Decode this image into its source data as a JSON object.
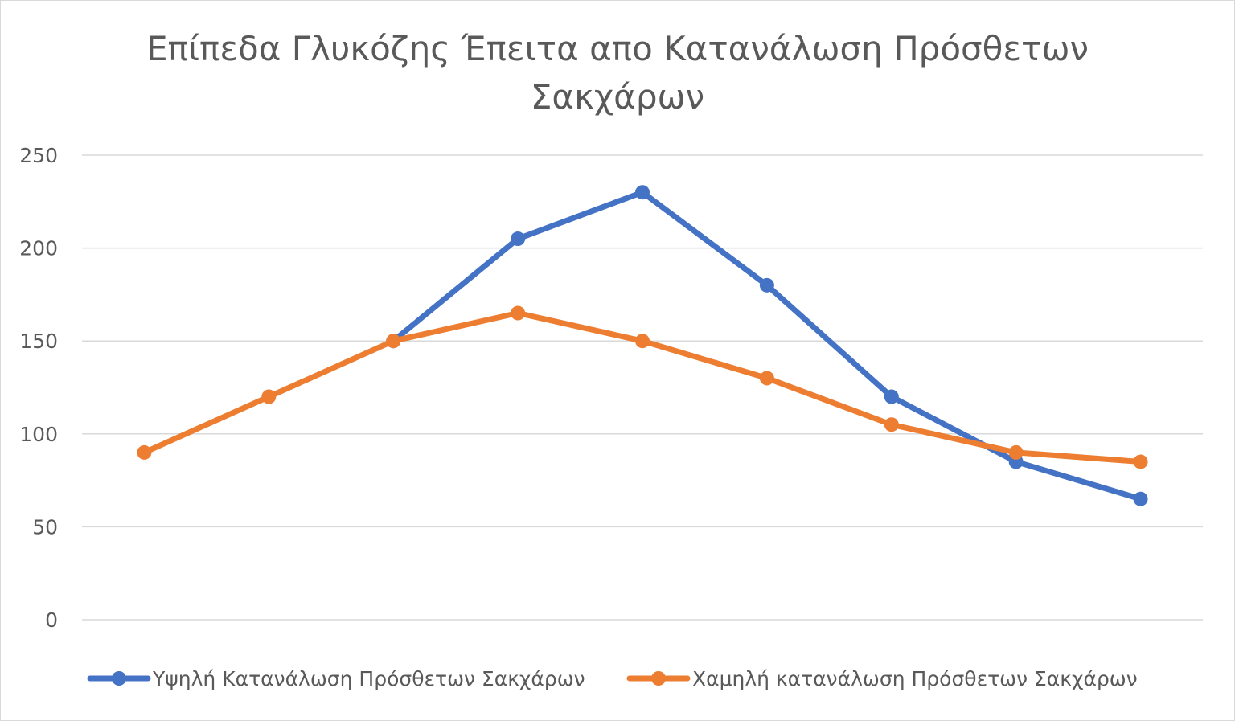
{
  "chart_data": {
    "type": "line",
    "title_lines": [
      "Επίπεδα Γλυκόζης Έπειτα απο Κατανάλωση Πρόσθετων",
      "Σακχάρων"
    ],
    "xlabel": "",
    "ylabel": "",
    "ylim": [
      0,
      250
    ],
    "yticks": [
      0,
      50,
      100,
      150,
      200,
      250
    ],
    "grid": true,
    "legend_position": "bottom",
    "series": [
      {
        "name": "Υψηλή Κατανάλωση Πρόσθετων Σακχάρων",
        "color": "#4472c4",
        "values": [
          null,
          null,
          150,
          205,
          230,
          180,
          120,
          85,
          65
        ]
      },
      {
        "name": "Χαμηλή κατανάλωση Πρόσθετων Σακχάρων",
        "color": "#ed7d31",
        "values": [
          90,
          120,
          150,
          165,
          150,
          130,
          105,
          90,
          85
        ]
      }
    ]
  }
}
